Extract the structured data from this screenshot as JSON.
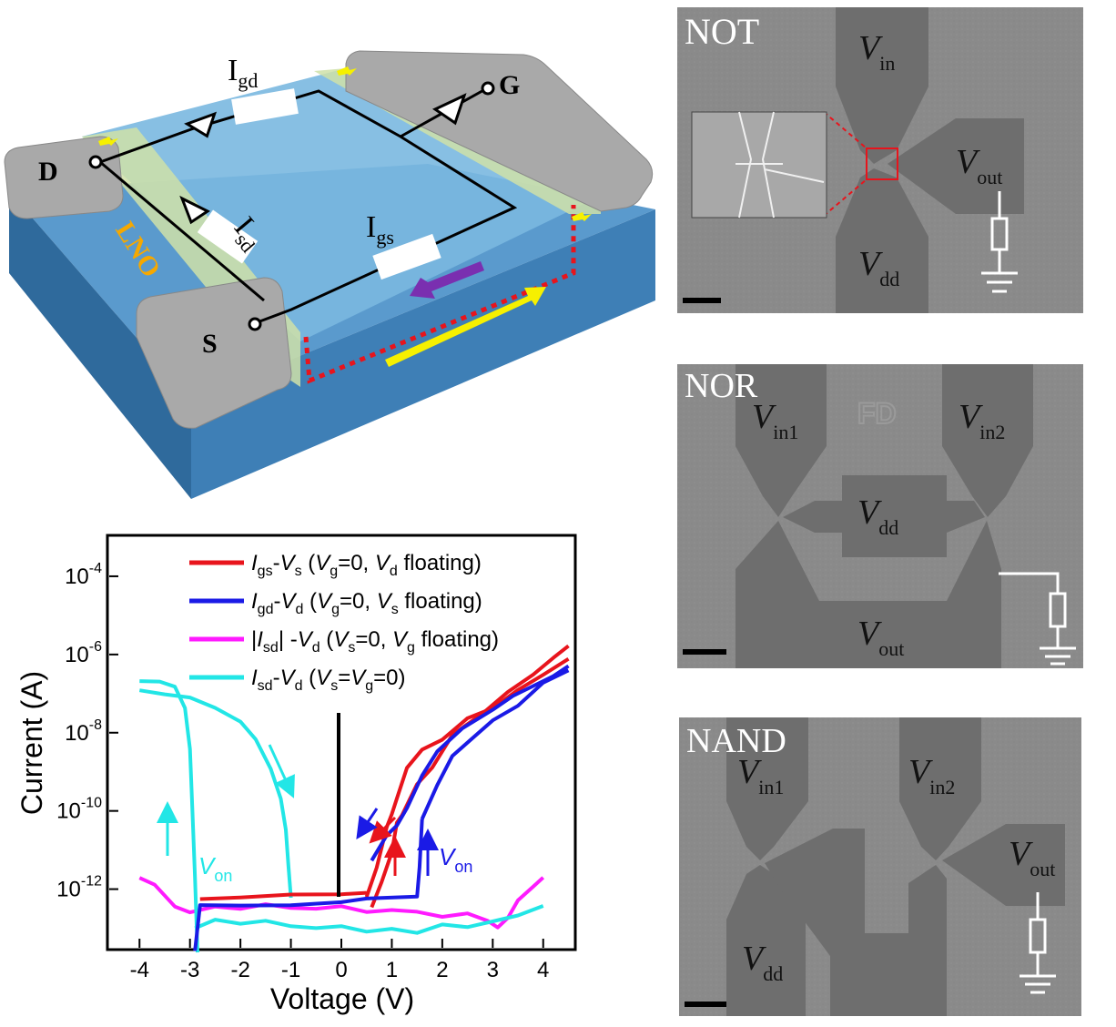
{
  "device": {
    "terminal_d": "D",
    "terminal_s": "S",
    "terminal_g": "G",
    "substrate": "LNO",
    "current_gd": {
      "main": "I",
      "sub": "gd"
    },
    "current_sd": {
      "main": "I",
      "sub": "sd"
    },
    "current_gs": {
      "main": "I",
      "sub": "gs"
    }
  },
  "sem_panels": [
    {
      "title": "NOT",
      "labels": [
        {
          "main": "V",
          "sub": "in"
        },
        {
          "main": "V",
          "sub": "out"
        },
        {
          "main": "V",
          "sub": "dd"
        }
      ]
    },
    {
      "title": "NOR",
      "mark": "FD",
      "labels": [
        {
          "main": "V",
          "sub": "in1"
        },
        {
          "main": "V",
          "sub": "in2"
        },
        {
          "main": "V",
          "sub": "dd"
        },
        {
          "main": "V",
          "sub": "out"
        }
      ]
    },
    {
      "title": "NAND",
      "labels": [
        {
          "main": "V",
          "sub": "in1"
        },
        {
          "main": "V",
          "sub": "in2"
        },
        {
          "main": "V",
          "sub": "out"
        },
        {
          "main": "V",
          "sub": "dd"
        }
      ]
    }
  ],
  "colors": {
    "red": "#e8141c",
    "blue": "#1a1ae6",
    "magenta": "#ff1aff",
    "cyan": "#22e6e6",
    "yellow": "#f6f000",
    "purple": "#7a2fb0",
    "substrate": "#3e7fb6",
    "sem_gray": "#8a8a8a"
  },
  "chart_data": {
    "type": "line",
    "xlabel": "Voltage (V)",
    "ylabel": "Current (A)",
    "xlim": [
      -4.6,
      4.6
    ],
    "ylim": [
      -13.5,
      -3
    ],
    "y_scale": "log",
    "x_ticks": [
      "-4",
      "-3",
      "-2",
      "-1",
      "0",
      "1",
      "2",
      "3",
      "4"
    ],
    "y_ticks": [
      {
        "base": "10",
        "exp": "-4"
      },
      {
        "base": "10",
        "exp": "-6"
      },
      {
        "base": "10",
        "exp": "-8"
      },
      {
        "base": "10",
        "exp": "-10"
      },
      {
        "base": "10",
        "exp": "-12"
      }
    ],
    "legend_position": "top-right",
    "legend": [
      {
        "color": "#e8141c",
        "parts": [
          [
            "I",
            "i"
          ],
          [
            "gs",
            "s"
          ],
          [
            "-",
            "n"
          ],
          [
            "V",
            "i"
          ],
          [
            "s",
            "s"
          ],
          [
            " (",
            "n"
          ],
          [
            "V",
            "i"
          ],
          [
            "g",
            "s"
          ],
          [
            "=0, ",
            "n"
          ],
          [
            "V",
            "i"
          ],
          [
            "d",
            "s"
          ],
          [
            " floating)",
            "n"
          ]
        ]
      },
      {
        "color": "#1a1ae6",
        "parts": [
          [
            "I",
            "i"
          ],
          [
            "gd",
            "s"
          ],
          [
            "-",
            "n"
          ],
          [
            "V",
            "i"
          ],
          [
            "d",
            "s"
          ],
          [
            " (",
            "n"
          ],
          [
            "V",
            "i"
          ],
          [
            "g",
            "s"
          ],
          [
            "=0, ",
            "n"
          ],
          [
            "V",
            "i"
          ],
          [
            "s",
            "s"
          ],
          [
            " floating)",
            "n"
          ]
        ]
      },
      {
        "color": "#ff1aff",
        "parts": [
          [
            "|",
            "n"
          ],
          [
            "I",
            "i"
          ],
          [
            "sd",
            "s"
          ],
          [
            "| -",
            "n"
          ],
          [
            "V",
            "i"
          ],
          [
            "d",
            "s"
          ],
          [
            " (",
            "n"
          ],
          [
            "V",
            "i"
          ],
          [
            "s",
            "s"
          ],
          [
            "=0, ",
            "n"
          ],
          [
            "V",
            "i"
          ],
          [
            "g",
            "s"
          ],
          [
            " floating)",
            "n"
          ]
        ]
      },
      {
        "color": "#22e6e6",
        "parts": [
          [
            "I",
            "i"
          ],
          [
            "sd",
            "s"
          ],
          [
            "-",
            "n"
          ],
          [
            "V",
            "i"
          ],
          [
            "d",
            "s"
          ],
          [
            " (",
            "n"
          ],
          [
            "V",
            "i"
          ],
          [
            "s",
            "s"
          ],
          [
            "=",
            "n"
          ],
          [
            "V",
            "i"
          ],
          [
            "g",
            "s"
          ],
          [
            "=0)",
            "n"
          ]
        ]
      }
    ],
    "annotations": [
      {
        "main": "V",
        "sub": "on",
        "color": "#22e6e6"
      },
      {
        "main": "V",
        "sub": "on",
        "color": "#1a1ae6"
      }
    ],
    "series": [
      {
        "color": "#e8141c",
        "x": [
          0.5,
          0.7,
          0.9,
          1.0,
          1.1,
          1.3,
          1.6,
          2.0,
          2.5,
          3.0,
          3.5,
          4.0,
          4.5
        ],
        "y": [
          -12.2,
          -11.5,
          -10.5,
          -10.2,
          -9.8,
          -9.0,
          -8.5,
          -8.2,
          -7.6,
          -7.3,
          -6.8,
          -6.4,
          -6.0
        ]
      },
      {
        "color": "#e8141c",
        "x": [
          0.6,
          0.8,
          1.0,
          1.1,
          1.2,
          1.5,
          1.8,
          2.2,
          2.8,
          3.3,
          3.8,
          4.2,
          4.5
        ],
        "y": [
          -12.5,
          -11.8,
          -11.0,
          -10.2,
          -10.0,
          -9.2,
          -8.8,
          -8.0,
          -7.5,
          -7.0,
          -6.6,
          -6.2,
          -5.9
        ]
      },
      {
        "color": "#1a1ae6",
        "x": [
          0.6,
          0.9,
          1.1,
          1.3,
          1.6,
          1.9,
          2.4,
          3.0,
          3.4,
          3.8,
          4.2,
          4.5
        ],
        "y": [
          -11.2,
          -10.6,
          -10.4,
          -10.0,
          -9.2,
          -8.6,
          -8.0,
          -7.5,
          -7.1,
          -6.8,
          -6.5,
          -6.2
        ]
      },
      {
        "color": "#1a1ae6",
        "x": [
          1.6,
          1.9,
          2.2,
          2.6,
          3.0,
          3.5,
          4.0,
          4.5
        ],
        "y": [
          -10.3,
          -9.4,
          -8.6,
          -8.1,
          -7.6,
          -7.2,
          -6.6,
          -6.3
        ]
      },
      {
        "color": "#ff1aff",
        "x": [
          -4.0,
          -3.7,
          -3.3,
          -3.0,
          -2.5,
          -2.0,
          -1.5,
          -1.0,
          -0.5,
          0.0,
          0.5,
          1.0,
          1.5,
          2.0,
          2.5,
          2.9,
          3.1,
          3.3,
          3.5,
          3.8,
          4.0
        ],
        "y": [
          -11.6,
          -11.8,
          -12.4,
          -12.6,
          -12.5,
          -12.6,
          -12.5,
          -12.6,
          -12.6,
          -12.5,
          -12.6,
          -12.5,
          -12.5,
          -12.6,
          -12.5,
          -12.7,
          -12.9,
          -12.7,
          -12.3,
          -12.0,
          -11.8
        ]
      },
      {
        "color": "#22e6e6",
        "x": [
          -4.0,
          -3.6,
          -3.3,
          -3.1,
          -3.0,
          -2.95,
          -2.9,
          -2.85
        ],
        "y": [
          -6.8,
          -6.8,
          -6.9,
          -7.4,
          -8.4,
          -10.0,
          -11.6,
          -13.5
        ]
      },
      {
        "color": "#22e6e6",
        "x": [
          -4.0,
          -3.5,
          -3.0,
          -2.5,
          -2.0,
          -1.7,
          -1.4,
          -1.2,
          -1.1,
          -1.05,
          -1.0
        ],
        "y": [
          -6.8,
          -6.9,
          -7.0,
          -7.3,
          -7.7,
          -8.2,
          -9.0,
          -9.8,
          -10.6,
          -11.5,
          -12.3
        ]
      },
      {
        "color": "#22e6e6",
        "x": [
          -2.9,
          -2.5,
          -2.0,
          -1.5,
          -1.0,
          -0.5,
          0.0,
          0.5,
          1.0,
          1.5,
          2.0,
          2.5,
          3.0,
          3.5,
          4.0
        ],
        "y": [
          -13.1,
          -12.9,
          -13.0,
          -12.9,
          -13.0,
          -13.0,
          -12.9,
          -13.0,
          -12.9,
          -13.0,
          -12.8,
          -12.9,
          -12.8,
          -12.7,
          -12.5
        ]
      },
      {
        "color": "#1a1ae6",
        "x": [
          -2.9,
          -2.8,
          -2.0,
          -1.0,
          0.0,
          0.5,
          1.5,
          1.55,
          1.6
        ],
        "y": [
          -13.5,
          -12.3,
          -12.3,
          -12.3,
          -12.25,
          -12.2,
          -12.2,
          -11.5,
          -10.3
        ]
      },
      {
        "color": "#e8141c",
        "x": [
          -2.8,
          -2.0,
          -1.0,
          0.0,
          0.5
        ],
        "y": [
          -12.3,
          -12.3,
          -12.25,
          -12.25,
          -12.2
        ]
      }
    ]
  }
}
